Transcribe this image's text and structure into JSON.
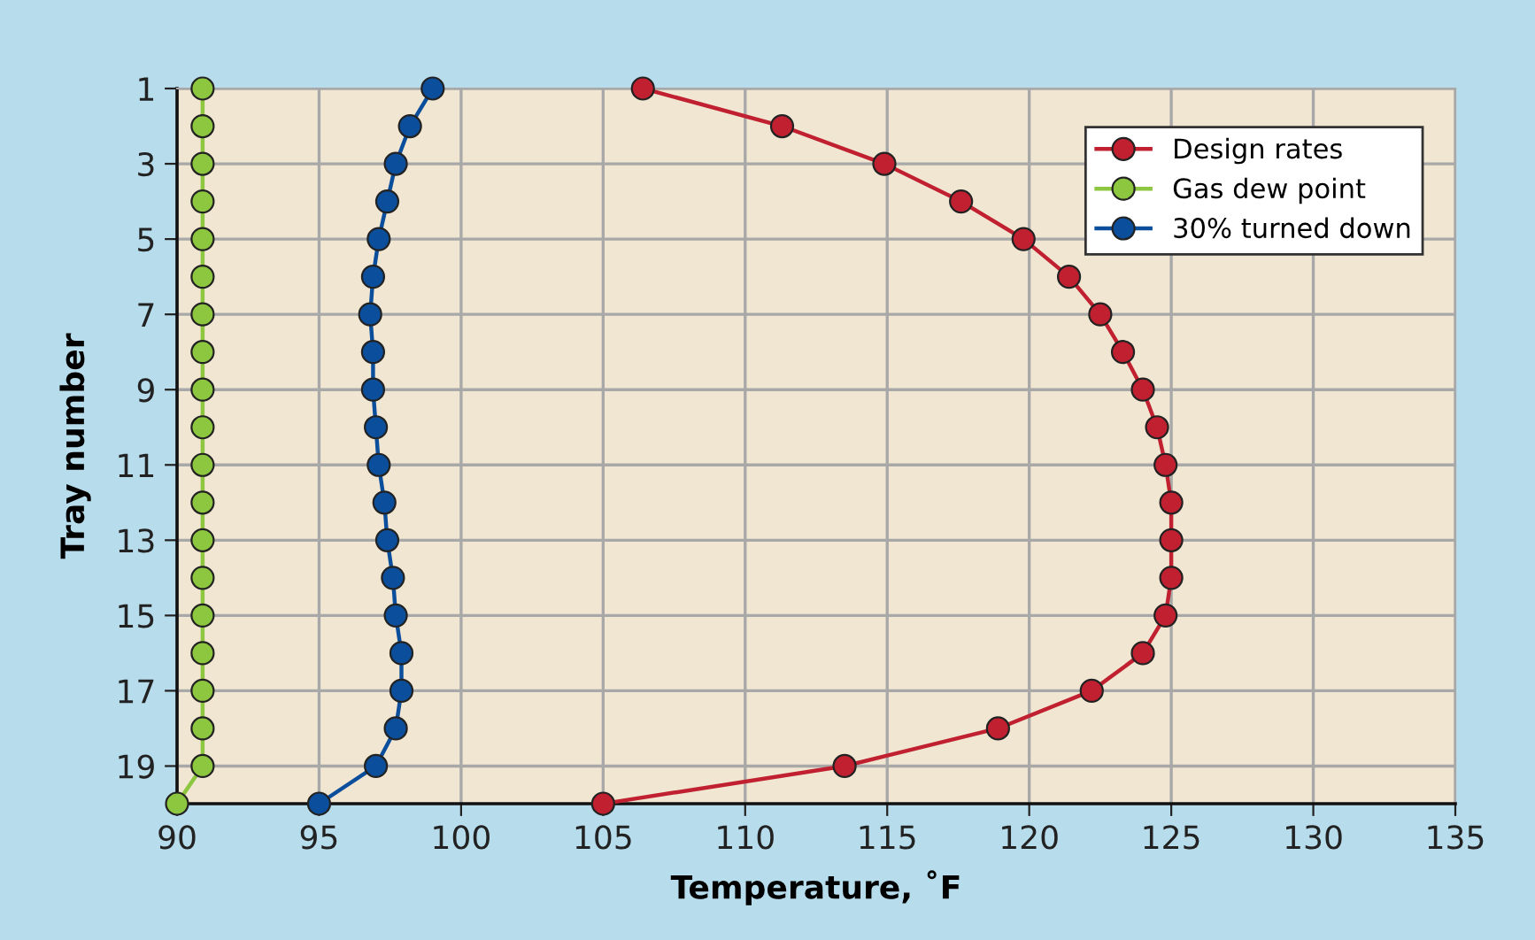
{
  "chart_data": {
    "type": "line",
    "xlabel": "Temperature, ˚F",
    "ylabel": "Tray number",
    "xlim": [
      90,
      135
    ],
    "xticks": [
      90,
      95,
      100,
      105,
      110,
      115,
      120,
      125,
      130,
      135
    ],
    "ylim": [
      20,
      1
    ],
    "yticks": [
      1,
      3,
      5,
      7,
      9,
      11,
      13,
      15,
      17,
      19
    ],
    "grid": true,
    "legend": "top right",
    "marker": "circle",
    "line_style": "solid",
    "series": [
      {
        "name": "Design rates",
        "color": "#c0202f",
        "x": [
          106.4,
          111.3,
          114.9,
          117.6,
          119.8,
          121.4,
          122.5,
          123.3,
          124.0,
          124.5,
          124.8,
          125.0,
          125.0,
          125.0,
          124.8,
          124.0,
          122.2,
          118.9,
          113.5,
          105.0
        ],
        "values": [
          1,
          2,
          3,
          4,
          5,
          6,
          7,
          8,
          9,
          10,
          11,
          12,
          13,
          14,
          15,
          16,
          17,
          18,
          19,
          20
        ]
      },
      {
        "name": "Gas dew point",
        "color": "#8dc63f",
        "x": [
          90.9,
          90.9,
          90.9,
          90.9,
          90.9,
          90.9,
          90.9,
          90.9,
          90.9,
          90.9,
          90.9,
          90.9,
          90.9,
          90.9,
          90.9,
          90.9,
          90.9,
          90.9,
          90.9,
          90.0
        ],
        "values": [
          1,
          2,
          3,
          4,
          5,
          6,
          7,
          8,
          9,
          10,
          11,
          12,
          13,
          14,
          15,
          16,
          17,
          18,
          19,
          20
        ]
      },
      {
        "name": "30% turned down",
        "color": "#0b4f9c",
        "x": [
          99.0,
          98.2,
          97.7,
          97.4,
          97.1,
          96.9,
          96.8,
          96.9,
          96.9,
          97.0,
          97.1,
          97.3,
          97.4,
          97.6,
          97.7,
          97.9,
          97.9,
          97.7,
          97.0,
          95.0
        ],
        "values": [
          1,
          2,
          3,
          4,
          5,
          6,
          7,
          8,
          9,
          10,
          11,
          12,
          13,
          14,
          15,
          16,
          17,
          18,
          19,
          20
        ]
      }
    ]
  }
}
